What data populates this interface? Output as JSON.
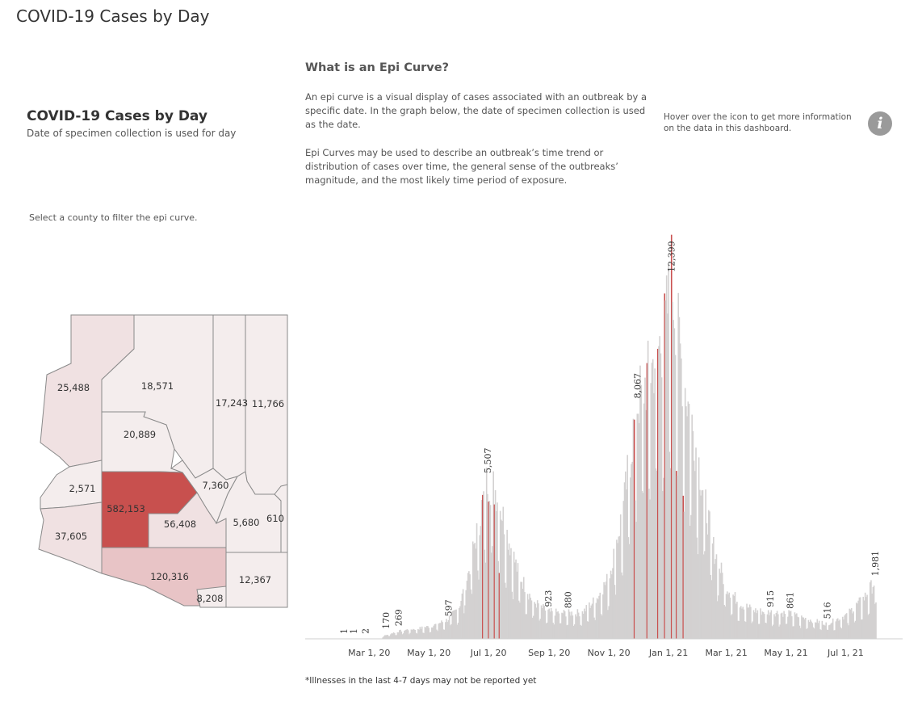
{
  "page": {
    "title": "COVID-19 Cases by Day"
  },
  "epi": {
    "heading": "What is an Epi Curve?",
    "paragraph1": "An epi curve is a visual display of cases associated with an outbreak by a specific date. In the graph below, the date of specimen collection is used as the date.",
    "paragraph2": "Epi Curves may be used to describe an outbreak’s time trend or distribution of cases over time, the general sense of the outbreaks’ magnitude, and the most likely time period of exposure."
  },
  "info": {
    "text": "Hover over the icon to get more information on the data in this dashboard.",
    "icon_glyph": "i",
    "icon": "info-icon"
  },
  "sidebar": {
    "title": "COVID-19 Cases by Day",
    "subtitle": "Date of specimen collection is used for day",
    "hint": "Select a county to filter the epi curve."
  },
  "map": {
    "colors": {
      "selected": "#c8504e",
      "high": "#e8c4c6",
      "mid": "#f0e1e2",
      "low": "#f4eded"
    },
    "counties": [
      {
        "id": "mohave",
        "value": "25,488",
        "shade": "mid"
      },
      {
        "id": "coconino",
        "value": "18,571",
        "shade": "low"
      },
      {
        "id": "navajo",
        "value": "17,243",
        "shade": "low"
      },
      {
        "id": "apache",
        "value": "11,766",
        "shade": "low"
      },
      {
        "id": "yavapai",
        "value": "20,889",
        "shade": "low"
      },
      {
        "id": "gila",
        "value": "7,360",
        "shade": "low"
      },
      {
        "id": "lapaz",
        "value": "2,571",
        "shade": "low"
      },
      {
        "id": "maricopa",
        "value": "582,153",
        "shade": "selected"
      },
      {
        "id": "pinal",
        "value": "56,408",
        "shade": "mid"
      },
      {
        "id": "graham",
        "value": "5,680",
        "shade": "low"
      },
      {
        "id": "greenlee",
        "value": "610",
        "shade": "low"
      },
      {
        "id": "yuma",
        "value": "37,605",
        "shade": "mid"
      },
      {
        "id": "pima",
        "value": "120,316",
        "shade": "high"
      },
      {
        "id": "cochise",
        "value": "12,367",
        "shade": "low"
      },
      {
        "id": "santacruz",
        "value": "8,208",
        "shade": "low"
      }
    ]
  },
  "chart_data": {
    "type": "bar",
    "title": "",
    "xlabel": "",
    "ylabel": "",
    "x_axis": {
      "type": "date",
      "start": "2020-01-22",
      "end": "2021-08-01",
      "ticks": [
        {
          "date": "2020-03-01",
          "label": "Mar 1, 20"
        },
        {
          "date": "2020-05-01",
          "label": "May 1, 20"
        },
        {
          "date": "2020-07-01",
          "label": "Jul 1, 20"
        },
        {
          "date": "2020-09-01",
          "label": "Sep 1, 20"
        },
        {
          "date": "2020-11-01",
          "label": "Nov 1, 20"
        },
        {
          "date": "2021-01-01",
          "label": "Jan 1, 21"
        },
        {
          "date": "2021-03-01",
          "label": "Mar 1, 21"
        },
        {
          "date": "2021-05-01",
          "label": "May 1, 21"
        },
        {
          "date": "2021-07-01",
          "label": "Jul 1, 21"
        }
      ]
    },
    "ylim": [
      0,
      14000
    ],
    "grid": false,
    "colors": {
      "bar": "#d3d1d1",
      "highlight": "#c9504f"
    },
    "labeled_points": [
      {
        "date": "2020-02-04",
        "value": 1,
        "label": "1"
      },
      {
        "date": "2020-02-14",
        "value": 1,
        "label": "1"
      },
      {
        "date": "2020-02-26",
        "value": 2,
        "label": "2"
      },
      {
        "date": "2020-03-18",
        "value": 170,
        "label": "170"
      },
      {
        "date": "2020-03-31",
        "value": 269,
        "label": "269"
      },
      {
        "date": "2020-05-21",
        "value": 597,
        "label": "597"
      },
      {
        "date": "2020-06-30",
        "value": 5507,
        "label": "5,507"
      },
      {
        "date": "2020-08-31",
        "value": 923,
        "label": "923"
      },
      {
        "date": "2020-09-20",
        "value": 880,
        "label": "880"
      },
      {
        "date": "2020-11-30",
        "value": 8067,
        "label": "8,067"
      },
      {
        "date": "2021-01-04",
        "value": 12399,
        "label": "12,399"
      },
      {
        "date": "2021-04-15",
        "value": 915,
        "label": "915"
      },
      {
        "date": "2021-05-05",
        "value": 861,
        "label": "861"
      },
      {
        "date": "2021-06-12",
        "value": 516,
        "label": "516"
      },
      {
        "date": "2021-07-31",
        "value": 1981,
        "label": "1,981"
      }
    ],
    "series": [
      {
        "values": [
          {
            "date": "2020-03-15",
            "value": 90
          },
          {
            "date": "2020-03-25",
            "value": 200
          },
          {
            "date": "2020-04-05",
            "value": 300
          },
          {
            "date": "2020-04-20",
            "value": 350
          },
          {
            "date": "2020-05-05",
            "value": 450
          },
          {
            "date": "2020-05-20",
            "value": 650
          },
          {
            "date": "2020-06-01",
            "value": 1100
          },
          {
            "date": "2020-06-10",
            "value": 2200
          },
          {
            "date": "2020-06-20",
            "value": 3800
          },
          {
            "date": "2020-06-30",
            "value": 5507
          },
          {
            "date": "2020-07-10",
            "value": 5000
          },
          {
            "date": "2020-07-20",
            "value": 3600
          },
          {
            "date": "2020-07-31",
            "value": 2300
          },
          {
            "date": "2020-08-15",
            "value": 1300
          },
          {
            "date": "2020-08-31",
            "value": 923
          },
          {
            "date": "2020-09-20",
            "value": 880
          },
          {
            "date": "2020-10-05",
            "value": 900
          },
          {
            "date": "2020-10-20",
            "value": 1400
          },
          {
            "date": "2020-11-01",
            "value": 2100
          },
          {
            "date": "2020-11-15",
            "value": 4300
          },
          {
            "date": "2020-11-30",
            "value": 8067
          },
          {
            "date": "2020-12-15",
            "value": 9300
          },
          {
            "date": "2020-12-28",
            "value": 10500
          },
          {
            "date": "2021-01-04",
            "value": 12399
          },
          {
            "date": "2021-01-15",
            "value": 9200
          },
          {
            "date": "2021-01-31",
            "value": 6200
          },
          {
            "date": "2021-02-15",
            "value": 3200
          },
          {
            "date": "2021-03-01",
            "value": 1800
          },
          {
            "date": "2021-03-15",
            "value": 1200
          },
          {
            "date": "2021-04-01",
            "value": 950
          },
          {
            "date": "2021-04-15",
            "value": 915
          },
          {
            "date": "2021-05-05",
            "value": 861
          },
          {
            "date": "2021-05-20",
            "value": 700
          },
          {
            "date": "2021-06-12",
            "value": 516
          },
          {
            "date": "2021-07-01",
            "value": 800
          },
          {
            "date": "2021-07-20",
            "value": 1400
          },
          {
            "date": "2021-07-31",
            "value": 1981
          }
        ]
      }
    ],
    "highlighted_dates": [
      "2020-06-25",
      "2020-07-01",
      "2020-07-07",
      "2020-07-12",
      "2020-11-27",
      "2020-12-10",
      "2020-12-21",
      "2020-12-28",
      "2021-01-04",
      "2021-01-09",
      "2021-01-16"
    ]
  },
  "footnote": "*Illnesses in the last 4-7 days may not be reported yet"
}
